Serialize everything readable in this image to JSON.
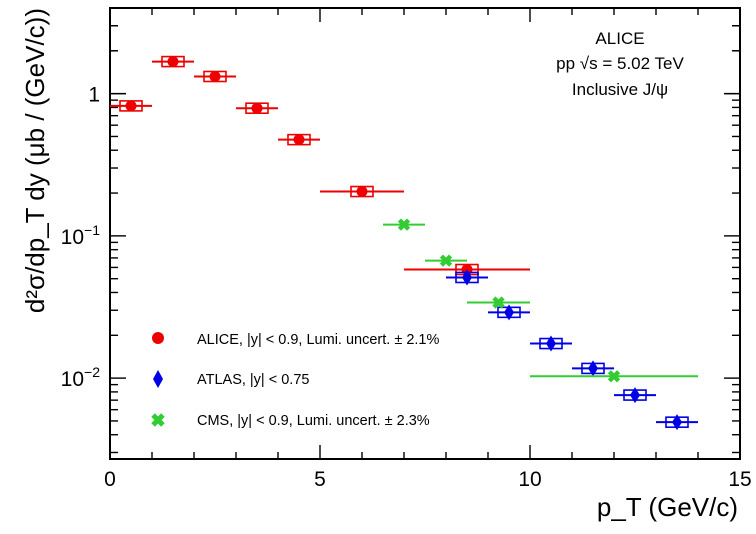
{
  "chart_data": {
    "type": "scatter",
    "title": "",
    "xlabel": "p_T (GeV/c)",
    "ylabel": "d²σ/dp_T dy (μb / (GeV/c))",
    "xlim": [
      0,
      15
    ],
    "ylim": [
      0.0027,
      4.0
    ],
    "yscale": "log",
    "x_ticks": [
      "0",
      "5",
      "10",
      "15"
    ],
    "y_ticks": [
      {
        "value": 1,
        "base": "1",
        "exp": ""
      },
      {
        "value": 0.1,
        "base": "10",
        "exp": "−1"
      },
      {
        "value": 0.01,
        "base": "10",
        "exp": "−2"
      }
    ],
    "annotations": [
      "ALICE",
      "pp  √s = 5.02 TeV",
      "Inclusive J/ψ"
    ],
    "legend_position": "bottom-left",
    "series": [
      {
        "name": "ALICE, |y| < 0.9, Lumi. uncert. ± 2.1%",
        "marker": "circle",
        "color": "#ee0000",
        "points": [
          {
            "x": 0.5,
            "y": 0.82,
            "xlo": 0,
            "xhi": 1
          },
          {
            "x": 1.5,
            "y": 1.68,
            "xlo": 1,
            "xhi": 2
          },
          {
            "x": 2.5,
            "y": 1.32,
            "xlo": 2,
            "xhi": 3
          },
          {
            "x": 3.5,
            "y": 0.79,
            "xlo": 3,
            "xhi": 4
          },
          {
            "x": 4.5,
            "y": 0.475,
            "xlo": 4,
            "xhi": 5
          },
          {
            "x": 6.0,
            "y": 0.205,
            "xlo": 5,
            "xhi": 7
          },
          {
            "x": 8.5,
            "y": 0.058,
            "xlo": 7,
            "xhi": 10
          }
        ]
      },
      {
        "name": "ATLAS, |y| < 0.75",
        "marker": "diamond",
        "color": "#0000e6",
        "points": [
          {
            "x": 8.5,
            "y": 0.051,
            "xlo": 8,
            "xhi": 9
          },
          {
            "x": 9.5,
            "y": 0.029,
            "xlo": 9,
            "xhi": 10
          },
          {
            "x": 10.5,
            "y": 0.0175,
            "xlo": 10,
            "xhi": 11
          },
          {
            "x": 11.5,
            "y": 0.0117,
            "xlo": 11,
            "xhi": 12
          },
          {
            "x": 12.5,
            "y": 0.0076,
            "xlo": 12,
            "xhi": 13
          },
          {
            "x": 13.5,
            "y": 0.0049,
            "xlo": 13,
            "xhi": 14
          }
        ]
      },
      {
        "name": "CMS, |y| < 0.9, Lumi. uncert. ± 2.3%",
        "marker": "cross",
        "color": "#33cc33",
        "points": [
          {
            "x": 7.0,
            "y": 0.12,
            "xlo": 6.5,
            "xhi": 7.5
          },
          {
            "x": 8.0,
            "y": 0.067,
            "xlo": 7.5,
            "xhi": 8.5
          },
          {
            "x": 9.25,
            "y": 0.034,
            "xlo": 8.5,
            "xhi": 10
          },
          {
            "x": 12.0,
            "y": 0.0103,
            "xlo": 10,
            "xhi": 14
          }
        ]
      }
    ]
  }
}
